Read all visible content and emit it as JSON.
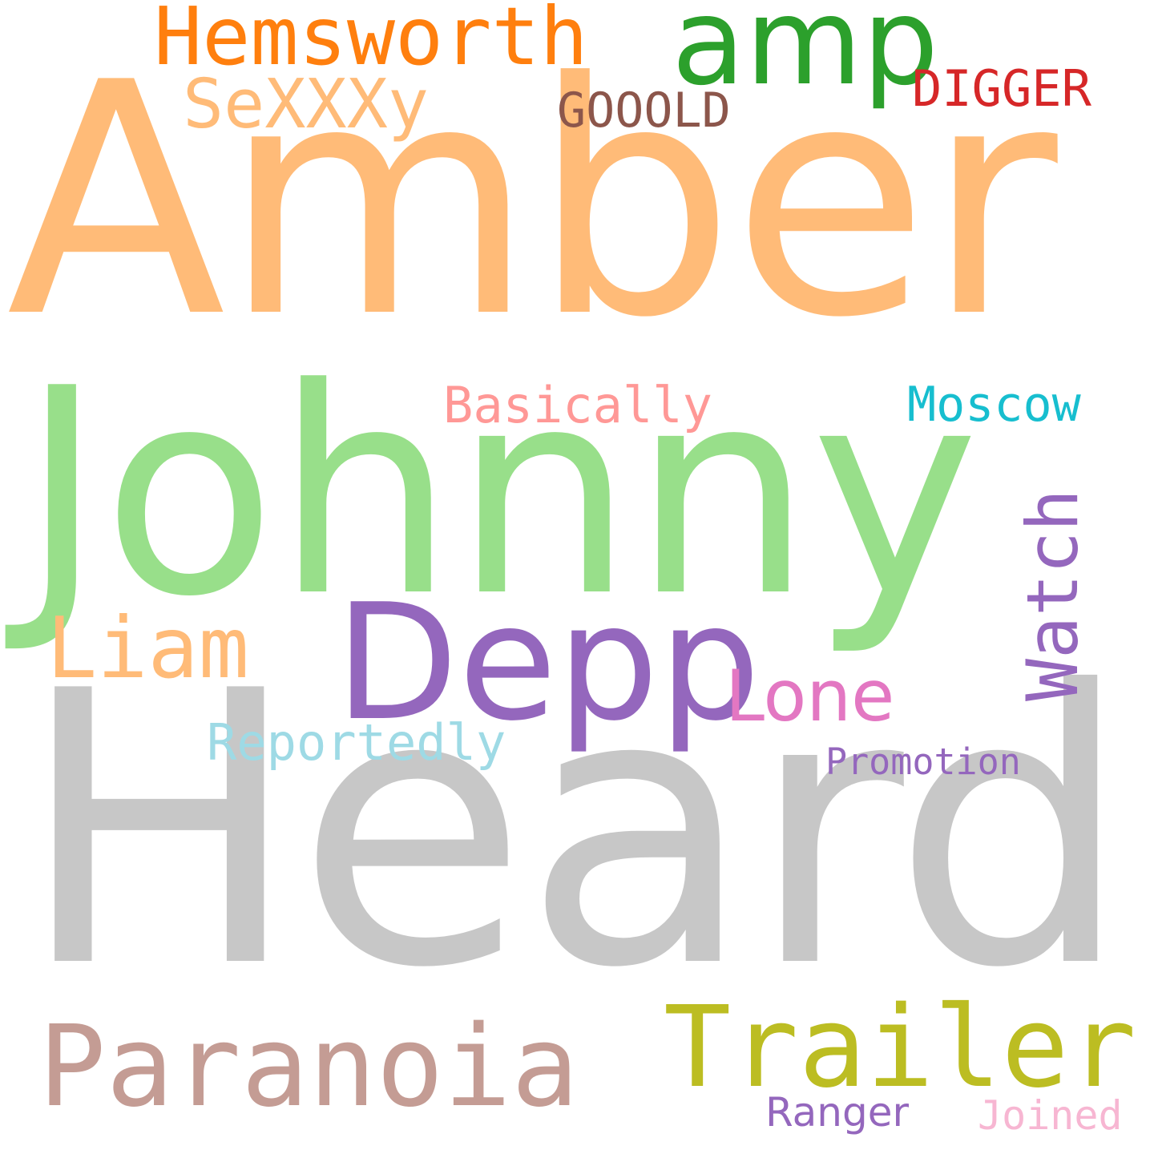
{
  "words": [
    {
      "text": "Heard",
      "color": "#c7c7c7"
    },
    {
      "text": "Amber",
      "color": "#ffbb78"
    },
    {
      "text": "Johnny",
      "color": "#98df8a"
    },
    {
      "text": "Depp",
      "color": "#9467bd"
    },
    {
      "text": "Paranoia",
      "color": "#c49c94"
    },
    {
      "text": "Trailer",
      "color": "#bcbd22"
    },
    {
      "text": "amp",
      "color": "#2ca02c"
    },
    {
      "text": "Hemsworth",
      "color": "#ff7f0e"
    },
    {
      "text": "Liam",
      "color": "#ffbb78"
    },
    {
      "text": "Lone",
      "color": "#e377c2"
    },
    {
      "text": "SeXXXy",
      "color": "#ffbb78"
    },
    {
      "text": "Watch",
      "color": "#9467bd"
    },
    {
      "text": "GOOOLD",
      "color": "#8c564b"
    },
    {
      "text": "DIGGER",
      "color": "#d62728"
    },
    {
      "text": "Basically",
      "color": "#ff9896"
    },
    {
      "text": "Moscow",
      "color": "#17becf"
    },
    {
      "text": "Reportedly",
      "color": "#9edae5"
    },
    {
      "text": "Promotion",
      "color": "#9467bd"
    },
    {
      "text": "Ranger",
      "color": "#9467bd"
    },
    {
      "text": "Joined",
      "color": "#f7b6d2"
    }
  ]
}
